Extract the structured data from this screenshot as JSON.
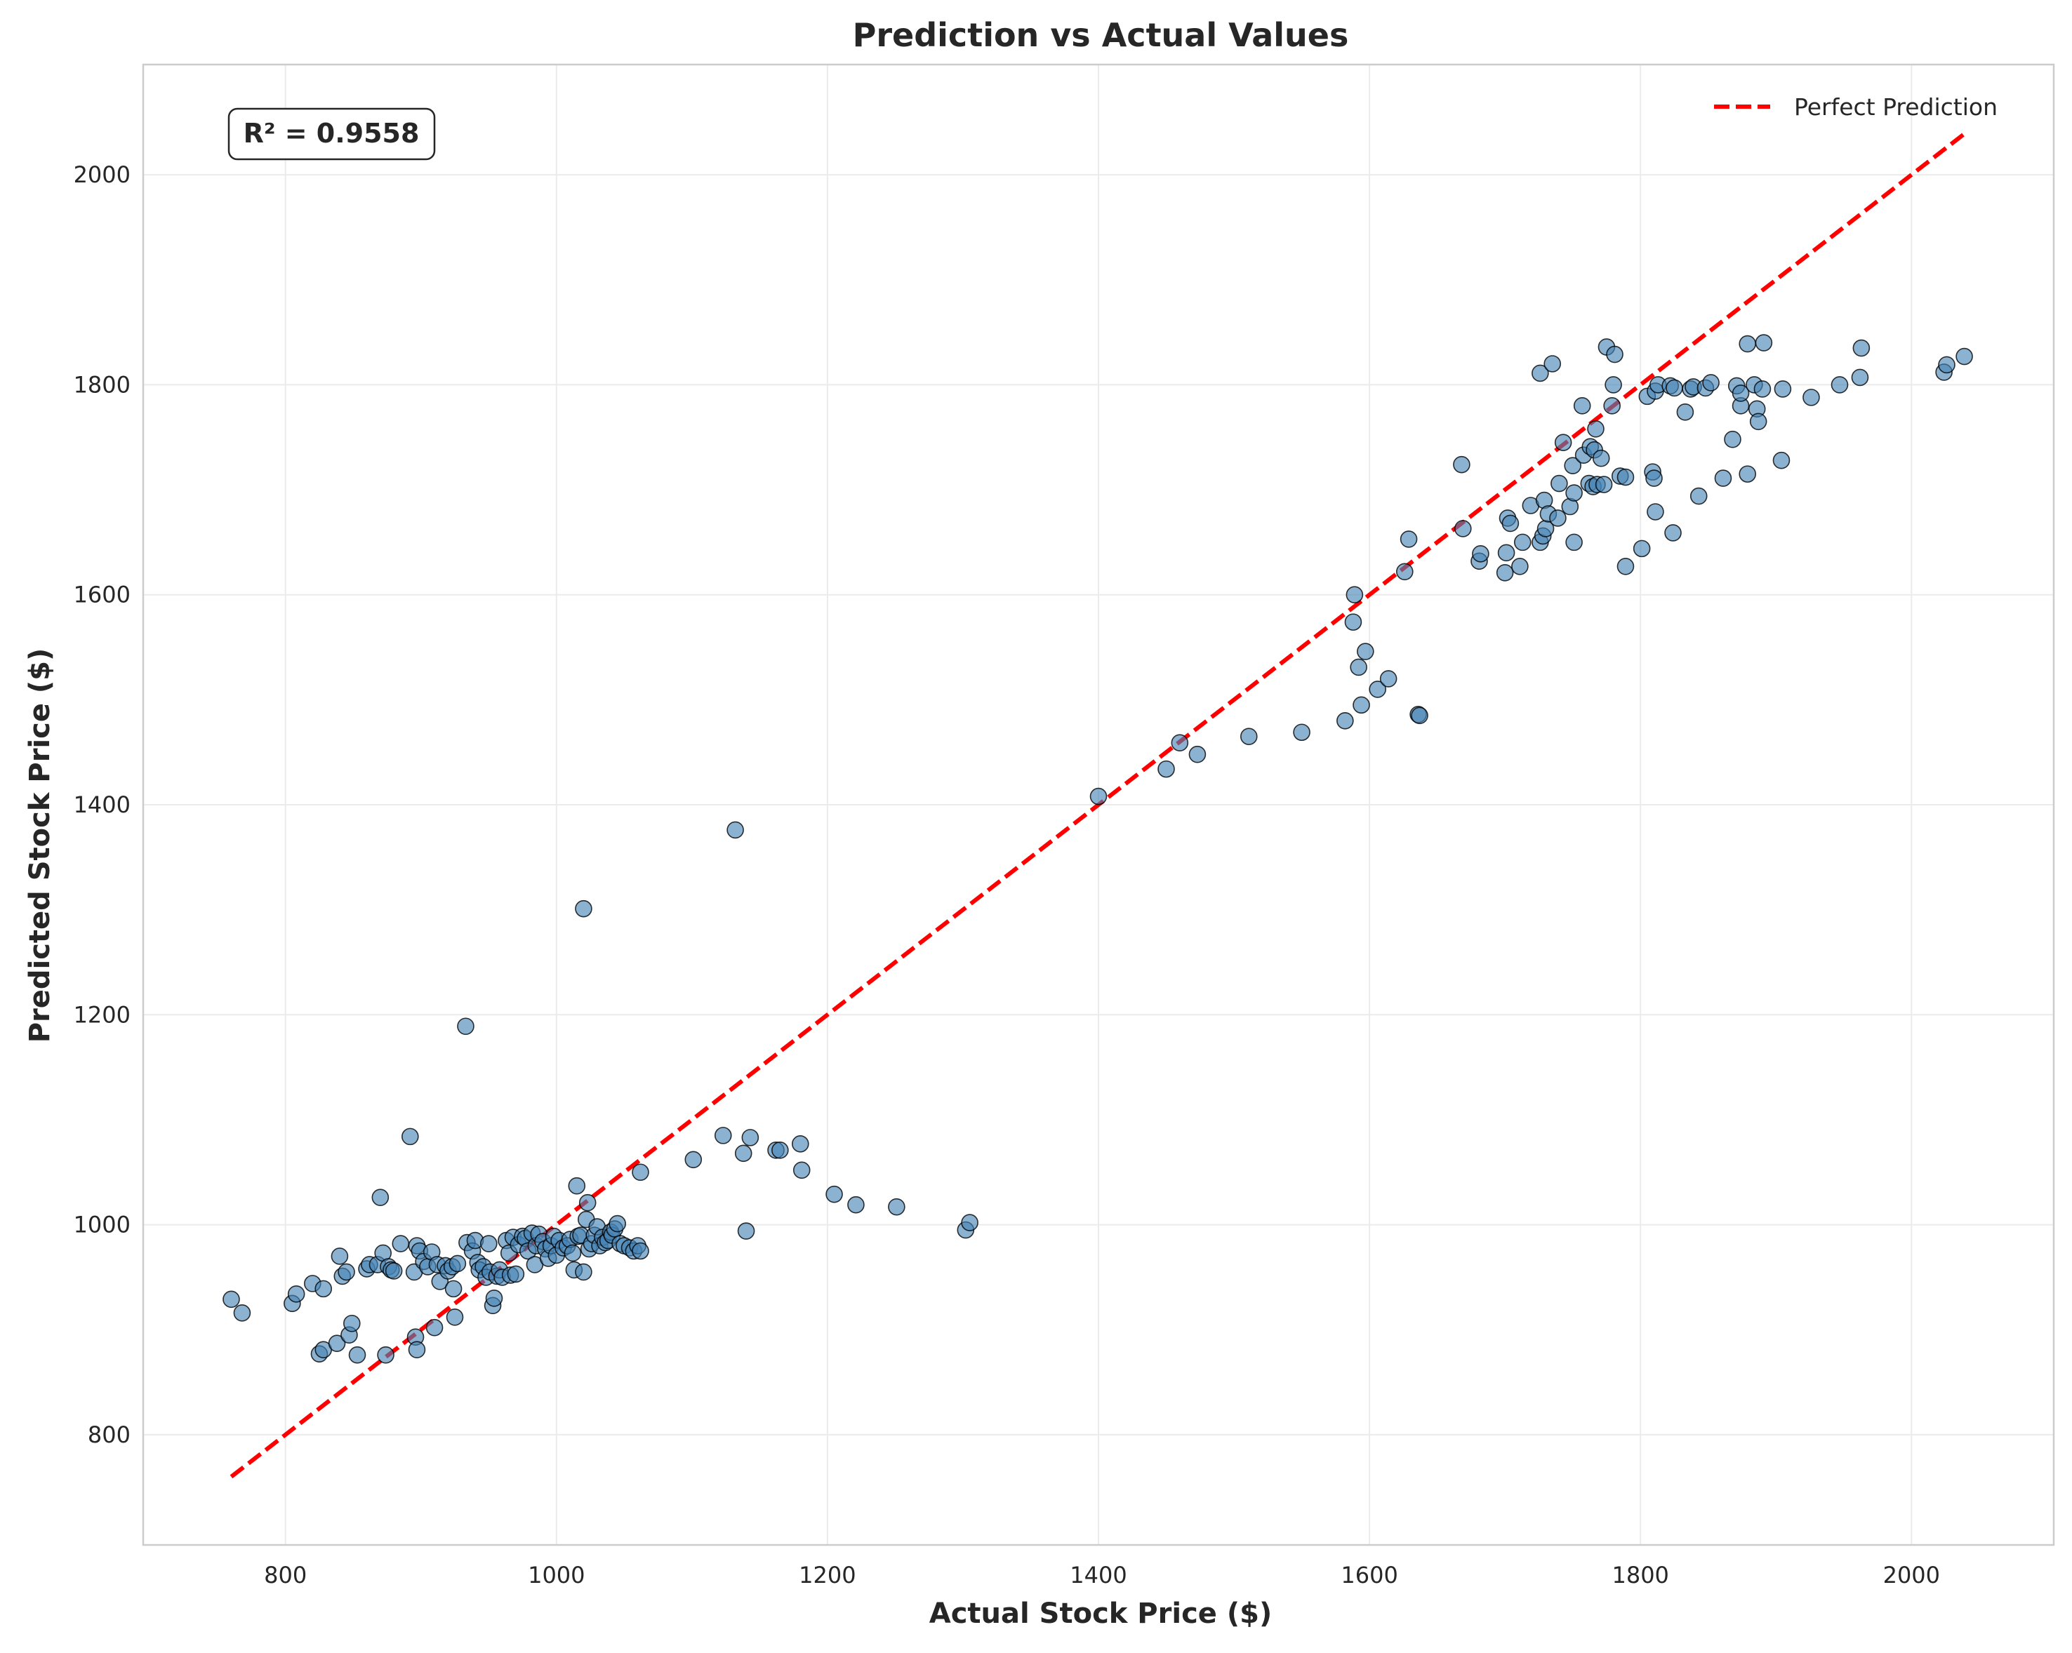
{
  "chart_data": {
    "type": "scatter",
    "title": "Prediction vs Actual Values",
    "xlabel": "Actual Stock Price ($)",
    "ylabel": "Predicted Stock Price ($)",
    "xlim": [
      695,
      2105
    ],
    "ylim": [
      695,
      2105
    ],
    "x_ticks": [
      800,
      1000,
      1200,
      1400,
      1600,
      1800,
      2000
    ],
    "y_ticks": [
      800,
      1000,
      1200,
      1400,
      1600,
      1800,
      2000
    ],
    "grid": true,
    "legend_position": "top-right",
    "annotation": "R² = 0.9558",
    "reference_line": {
      "name": "Perfect Prediction",
      "color": "#ff0000",
      "style": "dashed",
      "x": [
        760,
        2040
      ],
      "y": [
        760,
        2040
      ]
    },
    "point_color": "#4682b4",
    "point_edge_color": "#000000",
    "series": [
      {
        "points": [
          [
            760,
            929
          ],
          [
            768,
            916
          ],
          [
            805,
            925
          ],
          [
            808,
            934
          ],
          [
            820,
            944
          ],
          [
            828,
            939
          ],
          [
            825,
            877
          ],
          [
            828,
            881
          ],
          [
            838,
            887
          ],
          [
            840,
            970
          ],
          [
            842,
            951
          ],
          [
            845,
            955
          ],
          [
            847,
            895
          ],
          [
            849,
            906
          ],
          [
            853,
            876
          ],
          [
            860,
            958
          ],
          [
            862,
            962
          ],
          [
            868,
            962
          ],
          [
            870,
            1026
          ],
          [
            872,
            973
          ],
          [
            874,
            876
          ],
          [
            876,
            960
          ],
          [
            878,
            957
          ],
          [
            880,
            956
          ],
          [
            885,
            982
          ],
          [
            892,
            1084
          ],
          [
            895,
            955
          ],
          [
            896,
            893
          ],
          [
            897,
            881
          ],
          [
            897,
            980
          ],
          [
            899,
            975
          ],
          [
            902,
            965
          ],
          [
            905,
            960
          ],
          [
            908,
            974
          ],
          [
            910,
            902
          ],
          [
            912,
            962
          ],
          [
            914,
            946
          ],
          [
            918,
            961
          ],
          [
            920,
            956
          ],
          [
            923,
            960
          ],
          [
            924,
            939
          ],
          [
            925,
            912
          ],
          [
            927,
            963
          ],
          [
            933,
            1189
          ],
          [
            934,
            983
          ],
          [
            938,
            975
          ],
          [
            940,
            985
          ],
          [
            942,
            964
          ],
          [
            943,
            957
          ],
          [
            946,
            960
          ],
          [
            948,
            950
          ],
          [
            950,
            982
          ],
          [
            951,
            955
          ],
          [
            953,
            923
          ],
          [
            954,
            930
          ],
          [
            956,
            951
          ],
          [
            958,
            957
          ],
          [
            960,
            950
          ],
          [
            963,
            985
          ],
          [
            965,
            973
          ],
          [
            966,
            952
          ],
          [
            968,
            988
          ],
          [
            970,
            953
          ],
          [
            972,
            981
          ],
          [
            975,
            989
          ],
          [
            977,
            987
          ],
          [
            979,
            975
          ],
          [
            982,
            992
          ],
          [
            984,
            962
          ],
          [
            985,
            980
          ],
          [
            987,
            991
          ],
          [
            990,
            984
          ],
          [
            992,
            977
          ],
          [
            994,
            968
          ],
          [
            996,
            980
          ],
          [
            998,
            989
          ],
          [
            1000,
            971
          ],
          [
            1002,
            985
          ],
          [
            1005,
            978
          ],
          [
            1008,
            980
          ],
          [
            1010,
            986
          ],
          [
            1012,
            973
          ],
          [
            1013,
            957
          ],
          [
            1015,
            1037
          ],
          [
            1016,
            989
          ],
          [
            1018,
            990
          ],
          [
            1020,
            955
          ],
          [
            1020,
            1301
          ],
          [
            1022,
            1005
          ],
          [
            1023,
            1021
          ],
          [
            1024,
            977
          ],
          [
            1026,
            982
          ],
          [
            1028,
            990
          ],
          [
            1030,
            998
          ],
          [
            1032,
            980
          ],
          [
            1034,
            988
          ],
          [
            1036,
            983
          ],
          [
            1038,
            985
          ],
          [
            1040,
            993
          ],
          [
            1041,
            990
          ],
          [
            1043,
            996
          ],
          [
            1045,
            1001
          ],
          [
            1047,
            982
          ],
          [
            1050,
            980
          ],
          [
            1054,
            978
          ],
          [
            1057,
            975
          ],
          [
            1060,
            980
          ],
          [
            1062,
            975
          ],
          [
            1062,
            1050
          ],
          [
            1101,
            1062
          ],
          [
            1123,
            1085
          ],
          [
            1132,
            1376
          ],
          [
            1138,
            1068
          ],
          [
            1140,
            994
          ],
          [
            1143,
            1083
          ],
          [
            1162,
            1071
          ],
          [
            1165,
            1071
          ],
          [
            1180,
            1077
          ],
          [
            1181,
            1052
          ],
          [
            1205,
            1029
          ],
          [
            1221,
            1019
          ],
          [
            1251,
            1017
          ],
          [
            1302,
            995
          ],
          [
            1305,
            1002
          ],
          [
            1400,
            1408
          ],
          [
            1450,
            1434
          ],
          [
            1460,
            1459
          ],
          [
            1473,
            1448
          ],
          [
            1511,
            1465
          ],
          [
            1550,
            1469
          ],
          [
            1582,
            1480
          ],
          [
            1588,
            1574
          ],
          [
            1589,
            1600
          ],
          [
            1592,
            1531
          ],
          [
            1594,
            1495
          ],
          [
            1597,
            1546
          ],
          [
            1606,
            1510
          ],
          [
            1614,
            1520
          ],
          [
            1626,
            1622
          ],
          [
            1629,
            1653
          ],
          [
            1636,
            1486
          ],
          [
            1637,
            1485
          ],
          [
            1668,
            1724
          ],
          [
            1669,
            1663
          ],
          [
            1681,
            1632
          ],
          [
            1682,
            1639
          ],
          [
            1700,
            1621
          ],
          [
            1701,
            1640
          ],
          [
            1702,
            1673
          ],
          [
            1704,
            1668
          ],
          [
            1711,
            1627
          ],
          [
            1713,
            1650
          ],
          [
            1719,
            1685
          ],
          [
            1726,
            1650
          ],
          [
            1726,
            1811
          ],
          [
            1728,
            1656
          ],
          [
            1729,
            1690
          ],
          [
            1730,
            1663
          ],
          [
            1732,
            1677
          ],
          [
            1735,
            1820
          ],
          [
            1739,
            1673
          ],
          [
            1740,
            1706
          ],
          [
            1743,
            1745
          ],
          [
            1748,
            1684
          ],
          [
            1750,
            1723
          ],
          [
            1751,
            1650
          ],
          [
            1751,
            1697
          ],
          [
            1757,
            1780
          ],
          [
            1758,
            1733
          ],
          [
            1762,
            1706
          ],
          [
            1763,
            1741
          ],
          [
            1765,
            1703
          ],
          [
            1766,
            1738
          ],
          [
            1767,
            1758
          ],
          [
            1768,
            1705
          ],
          [
            1771,
            1730
          ],
          [
            1773,
            1705
          ],
          [
            1775,
            1836
          ],
          [
            1779,
            1780
          ],
          [
            1780,
            1800
          ],
          [
            1781,
            1829
          ],
          [
            1785,
            1713
          ],
          [
            1789,
            1712
          ],
          [
            1789,
            1627
          ],
          [
            1801,
            1644
          ],
          [
            1805,
            1789
          ],
          [
            1809,
            1717
          ],
          [
            1810,
            1711
          ],
          [
            1811,
            1679
          ],
          [
            1811,
            1794
          ],
          [
            1813,
            1800
          ],
          [
            1822,
            1799
          ],
          [
            1824,
            1659
          ],
          [
            1825,
            1797
          ],
          [
            1833,
            1774
          ],
          [
            1837,
            1796
          ],
          [
            1839,
            1798
          ],
          [
            1843,
            1694
          ],
          [
            1848,
            1797
          ],
          [
            1852,
            1802
          ],
          [
            1861,
            1711
          ],
          [
            1868,
            1748
          ],
          [
            1871,
            1799
          ],
          [
            1874,
            1780
          ],
          [
            1874,
            1792
          ],
          [
            1879,
            1839
          ],
          [
            1879,
            1715
          ],
          [
            1884,
            1800
          ],
          [
            1886,
            1777
          ],
          [
            1887,
            1765
          ],
          [
            1890,
            1796
          ],
          [
            1891,
            1840
          ],
          [
            1904,
            1728
          ],
          [
            1905,
            1796
          ],
          [
            1926,
            1788
          ],
          [
            1947,
            1800
          ],
          [
            1962,
            1807
          ],
          [
            1963,
            1835
          ],
          [
            2024,
            1812
          ],
          [
            2026,
            1819
          ],
          [
            2039,
            1827
          ]
        ]
      }
    ]
  }
}
